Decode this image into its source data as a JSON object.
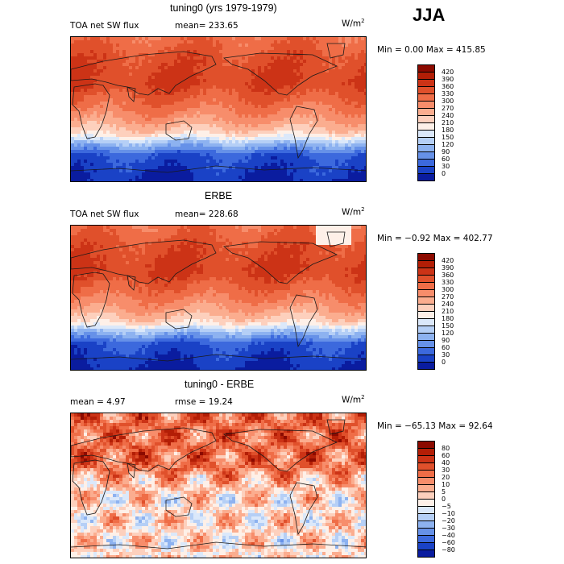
{
  "season": "JJA",
  "panels": [
    {
      "title": "tuning0 (yrs 1979-1979)",
      "left_label": "TOA net SW flux",
      "mid_label": "mean= 233.65",
      "unit_base": "W/m",
      "unit_exp": "2",
      "minmax": "Min =    0.00 Max = 415.85",
      "colorbar": {
        "labels": [
          "420",
          "390",
          "360",
          "330",
          "300",
          "270",
          "240",
          "210",
          "180",
          "150",
          "120",
          "90",
          "60",
          "30",
          "0"
        ],
        "colors": [
          "#8c0a00",
          "#b31e06",
          "#cc3316",
          "#e0502b",
          "#ef6d47",
          "#f78d6b",
          "#fbad8f",
          "#fdd0bd",
          "#fef0e8",
          "#dbe8fa",
          "#b5cff6",
          "#8db2f0",
          "#6691e8",
          "#3c69dd",
          "#1a42c6",
          "#0a1c9f"
        ]
      }
    },
    {
      "title": "ERBE",
      "left_label": "TOA net SW flux",
      "mid_label": "mean= 228.68",
      "unit_base": "W/m",
      "unit_exp": "2",
      "minmax": "Min =  −0.92 Max = 402.77",
      "colorbar": {
        "labels": [
          "420",
          "390",
          "360",
          "330",
          "300",
          "270",
          "240",
          "210",
          "180",
          "150",
          "120",
          "90",
          "60",
          "30",
          "0"
        ],
        "colors": [
          "#8c0a00",
          "#b31e06",
          "#cc3316",
          "#e0502b",
          "#ef6d47",
          "#f78d6b",
          "#fbad8f",
          "#fdd0bd",
          "#fef0e8",
          "#dbe8fa",
          "#b5cff6",
          "#8db2f0",
          "#6691e8",
          "#3c69dd",
          "#1a42c6",
          "#0a1c9f"
        ]
      }
    },
    {
      "title": "tuning0 - ERBE",
      "left_label": "mean =    4.97",
      "mid_label": "rmse =  19.24",
      "unit_base": "W/m",
      "unit_exp": "2",
      "minmax": "Min = −65.13 Max =  92.64",
      "colorbar": {
        "labels": [
          "80",
          "60",
          "40",
          "30",
          "20",
          "10",
          "5",
          "0",
          "−5",
          "−10",
          "−20",
          "−30",
          "−40",
          "−60",
          "−80"
        ],
        "colors": [
          "#8c0a00",
          "#b31e06",
          "#cc3316",
          "#e0502b",
          "#ef6d47",
          "#f78d6b",
          "#fbad8f",
          "#fdd0bd",
          "#fef0e8",
          "#dbe8fa",
          "#b5cff6",
          "#8db2f0",
          "#6691e8",
          "#3c69dd",
          "#1a42c6",
          "#0a1c9f"
        ]
      }
    }
  ]
}
